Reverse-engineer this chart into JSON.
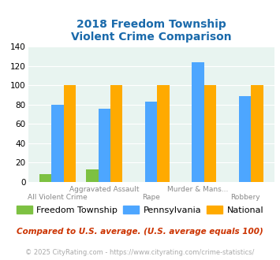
{
  "title": "2018 Freedom Township\nViolent Crime Comparison",
  "groups": [
    "All Violent Crime",
    "Aggravated Assault",
    "Rape",
    "Murder & Mans...",
    "Robbery"
  ],
  "freedom_township": [
    8,
    13,
    0,
    0,
    0
  ],
  "pennsylvania": [
    80,
    76,
    83,
    124,
    89
  ],
  "national": [
    100,
    100,
    100,
    100,
    100
  ],
  "color_freedom": "#7dc142",
  "color_pennsylvania": "#4da6ff",
  "color_national": "#ffaa00",
  "ylim": [
    0,
    140
  ],
  "yticks": [
    0,
    20,
    40,
    60,
    80,
    100,
    120,
    140
  ],
  "top_labels": [
    "",
    "Aggravated Assault",
    "",
    "Murder & Mans...",
    ""
  ],
  "bottom_labels": [
    "All Violent Crime",
    "",
    "Rape",
    "",
    "Robbery"
  ],
  "legend_labels": [
    "Freedom Township",
    "Pennsylvania",
    "National"
  ],
  "footnote1": "Compared to U.S. average. (U.S. average equals 100)",
  "footnote2": "© 2025 CityRating.com - https://www.cityrating.com/crime-statistics/",
  "bg_color": "#e8f4f0",
  "title_color": "#1a6aab",
  "footnote1_color": "#cc3300",
  "footnote2_color": "#aaaaaa",
  "axis_label_color": "#888888"
}
